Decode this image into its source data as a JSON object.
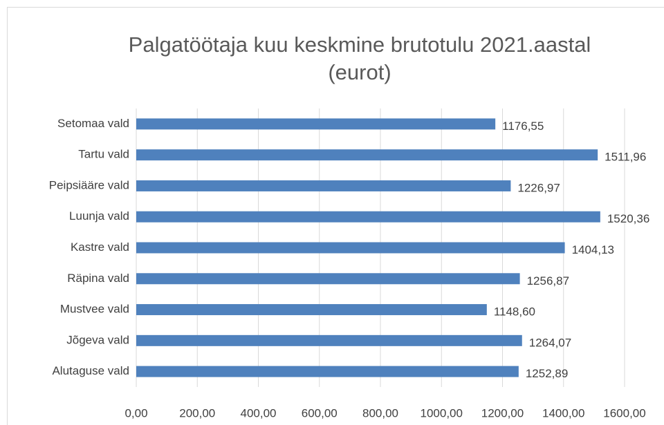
{
  "chart_data": {
    "type": "bar",
    "orientation": "horizontal",
    "title": "Palgatöötaja kuu keskmine brutotulu 2021.aastal (eurot)",
    "categories": [
      "Setomaa vald",
      "Tartu vald",
      "Peipsiääre vald",
      "Luunja vald",
      "Kastre vald",
      "Räpina vald",
      "Mustvee vald",
      "Jõgeva vald",
      "Alutaguse vald"
    ],
    "values": [
      1176.55,
      1511.96,
      1226.97,
      1520.36,
      1404.13,
      1256.87,
      1148.6,
      1264.07,
      1252.89
    ],
    "value_labels": [
      "1176,55",
      "1511,96",
      "1226,97",
      "1520,36",
      "1404,13",
      "1256,87",
      "1148,60",
      "1264,07",
      "1252,89"
    ],
    "color": "#4f81bd",
    "xlim": [
      0,
      1600
    ],
    "xticks": [
      {
        "value": 0,
        "label": "0,00"
      },
      {
        "value": 200,
        "label": "200,00"
      },
      {
        "value": 400,
        "label": "400,00"
      },
      {
        "value": 600,
        "label": "600,00"
      },
      {
        "value": 800,
        "label": "800,00"
      },
      {
        "value": 1000,
        "label": "1000,00"
      },
      {
        "value": 1200,
        "label": "1200,00"
      },
      {
        "value": 1400,
        "label": "1400,00"
      },
      {
        "value": 1600,
        "label": "1600,00"
      }
    ],
    "grid": true
  }
}
